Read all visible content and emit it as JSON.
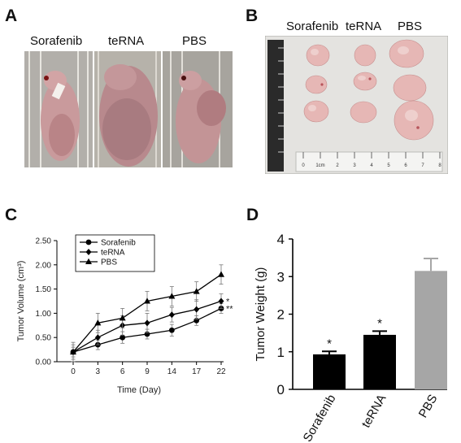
{
  "panels": {
    "A": {
      "letter": "A",
      "labels": [
        "Sorafenib",
        "teRNA",
        "PBS"
      ]
    },
    "B": {
      "letter": "B",
      "labels": [
        "Sorafenib",
        "teRNA",
        "PBS"
      ],
      "ruler_labels": [
        "0",
        "1cm",
        "2",
        "3",
        "4",
        "5",
        "6",
        "7",
        "8"
      ]
    },
    "C": {
      "letter": "C"
    },
    "D": {
      "letter": "D"
    }
  },
  "chart_data": [
    {
      "panel": "C",
      "type": "line",
      "xlabel": "Time (Day)",
      "ylabel": "Tumor Volume (cm³)",
      "x": [
        0,
        3,
        6,
        9,
        14,
        17,
        22
      ],
      "xticks": [
        "0",
        "3",
        "6",
        "9",
        "14",
        "17",
        "22"
      ],
      "ylim": [
        0,
        2.5
      ],
      "yticks": [
        "0.00",
        "0.50",
        "1.00",
        "1.50",
        "2.00",
        "2.50"
      ],
      "legend_position": "top-left",
      "series": [
        {
          "name": "Sorafenib",
          "marker": "circle",
          "values": [
            0.2,
            0.35,
            0.5,
            0.57,
            0.65,
            0.85,
            1.1
          ],
          "errors": [
            0.1,
            0.1,
            0.12,
            0.1,
            0.12,
            0.1,
            0.1
          ],
          "annotation": "**"
        },
        {
          "name": "teRNA",
          "marker": "diamond",
          "values": [
            0.2,
            0.5,
            0.75,
            0.8,
            0.97,
            1.08,
            1.25
          ],
          "errors": [
            0.15,
            0.15,
            0.2,
            0.2,
            0.15,
            0.2,
            0.15
          ],
          "annotation": "*"
        },
        {
          "name": "PBS",
          "marker": "triangle",
          "values": [
            0.2,
            0.8,
            0.9,
            1.25,
            1.35,
            1.45,
            1.8
          ],
          "errors": [
            0.2,
            0.2,
            0.2,
            0.2,
            0.2,
            0.2,
            0.2
          ],
          "annotation": ""
        }
      ]
    },
    {
      "panel": "D",
      "type": "bar",
      "ylabel": "Tumor Weight (g)",
      "categories": [
        "Sorafenib",
        "teRNA",
        "PBS"
      ],
      "values": [
        0.93,
        1.45,
        3.15
      ],
      "errors": [
        0.08,
        0.1,
        0.33
      ],
      "annotations": [
        "*",
        "*",
        ""
      ],
      "colors": [
        "#000000",
        "#000000",
        "#a6a6a6"
      ],
      "ylim": [
        0,
        4
      ],
      "yticks": [
        "0",
        "1",
        "2",
        "3",
        "4"
      ]
    }
  ]
}
